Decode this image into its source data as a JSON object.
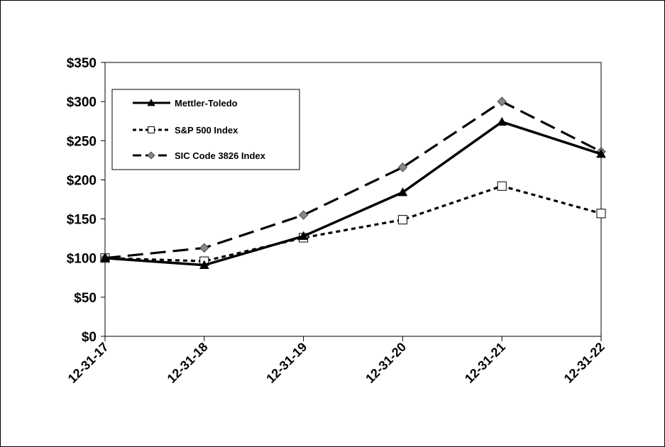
{
  "chart_data": {
    "type": "line",
    "title": "",
    "xlabel": "",
    "ylabel": "",
    "categories": [
      "12-31-17",
      "12-31-18",
      "12-31-19",
      "12-31-20",
      "12-31-21",
      "12-31-22"
    ],
    "ylim": [
      0,
      350
    ],
    "y_ticks": [
      0,
      50,
      100,
      150,
      200,
      250,
      300,
      350
    ],
    "y_tick_labels": [
      "$0",
      "$50",
      "$100",
      "$150",
      "$200",
      "$250",
      "$300",
      "$350"
    ],
    "grid": false,
    "legend_position": "top-left",
    "series": [
      {
        "name": "Mettler-Toledo",
        "values": [
          100,
          91,
          128,
          184,
          274,
          233
        ],
        "marker": "triangle",
        "line_style": "solid",
        "color": "#000000"
      },
      {
        "name": "S&P 500 Index",
        "values": [
          100,
          96,
          126,
          149,
          192,
          157
        ],
        "marker": "square-open",
        "line_style": "dotted",
        "color": "#000000"
      },
      {
        "name": "SIC Code 3826 Index",
        "values": [
          100,
          113,
          155,
          216,
          300,
          236
        ],
        "marker": "diamond-gray",
        "line_style": "dashed",
        "color": "#000000",
        "marker_color": "#888888"
      }
    ]
  }
}
